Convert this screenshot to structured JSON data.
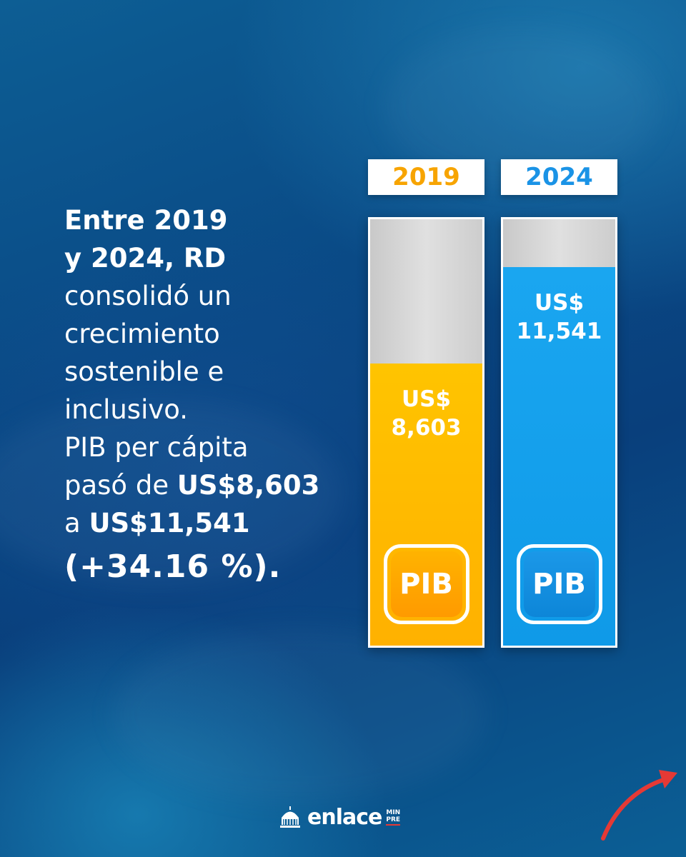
{
  "headline": {
    "line1": "Entre 2019",
    "line2": "y 2024, RD",
    "line3": "consolidó un",
    "line4": "crecimiento",
    "line5": "sostenible e",
    "line6": "inclusivo.",
    "line7": "PIB per cápita",
    "line8_prefix": "pasó de ",
    "line8_value": "US$8,603",
    "line9_prefix": "a ",
    "line9_value": "US$11,541",
    "line10": "(+34.16 %)."
  },
  "chart_data": {
    "type": "bar",
    "categories": [
      "2019",
      "2024"
    ],
    "values": [
      8603,
      11541
    ],
    "value_labels": [
      {
        "currency": "US$",
        "amount": "8,603"
      },
      {
        "currency": "US$",
        "amount": "11,541"
      }
    ],
    "badge_label": "PIB",
    "ylim": [
      0,
      13000
    ],
    "grid": false,
    "colors": {
      "2019": "#ffb800",
      "2024": "#12a0ec",
      "track": "#d6d6d6"
    },
    "year_colors": {
      "2019": "#f7a400",
      "2024": "#1a93e6"
    }
  },
  "logo": {
    "word": "enlace",
    "sub_top": "MIN",
    "sub_bottom": "PRE"
  },
  "colors": {
    "background": "#0a4a86",
    "arrow": "#e53935"
  }
}
